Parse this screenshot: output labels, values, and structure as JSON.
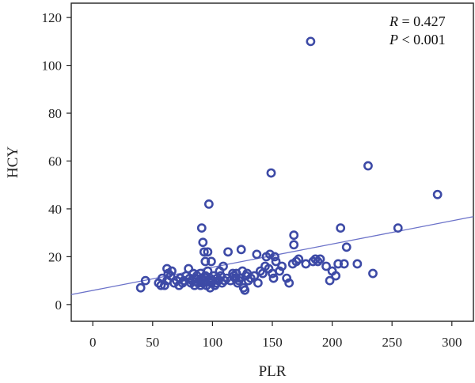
{
  "chart_data": {
    "type": "scatter",
    "xlabel": "PLR",
    "ylabel": "HCY",
    "xlim": [
      -18,
      318
    ],
    "ylim": [
      -7,
      126
    ],
    "x_ticks": [
      0,
      50,
      100,
      150,
      200,
      250,
      300
    ],
    "y_ticks": [
      0,
      20,
      40,
      60,
      80,
      100,
      120
    ],
    "x_tick_labels": [
      "0",
      "50",
      "100",
      "150",
      "200",
      "250",
      "300"
    ],
    "y_tick_labels": [
      "0",
      "20",
      "40",
      "60",
      "80",
      "100",
      "120"
    ],
    "grid": false,
    "marker_color": "#3d4aa6",
    "line_color": "#6b72c9",
    "regression_line": {
      "intercept": 5.9,
      "slope": 0.097
    },
    "annotation": {
      "r_symbol": "R",
      "r_text": " = 0.427",
      "p_symbol": "P",
      "p_text": " < 0.001"
    },
    "points": [
      [
        40,
        7
      ],
      [
        44,
        10
      ],
      [
        55,
        9
      ],
      [
        57,
        8
      ],
      [
        58,
        11
      ],
      [
        60,
        8
      ],
      [
        62,
        10
      ],
      [
        62,
        15
      ],
      [
        63,
        13
      ],
      [
        65,
        12
      ],
      [
        66,
        14
      ],
      [
        68,
        9
      ],
      [
        70,
        10
      ],
      [
        72,
        8
      ],
      [
        73,
        11
      ],
      [
        75,
        9
      ],
      [
        76,
        10
      ],
      [
        78,
        12
      ],
      [
        80,
        15
      ],
      [
        81,
        11
      ],
      [
        82,
        9
      ],
      [
        83,
        10
      ],
      [
        84,
        13
      ],
      [
        85,
        8
      ],
      [
        86,
        11
      ],
      [
        87,
        12
      ],
      [
        88,
        9
      ],
      [
        89,
        10
      ],
      [
        90,
        8
      ],
      [
        90,
        13
      ],
      [
        91,
        11
      ],
      [
        91,
        32
      ],
      [
        92,
        9
      ],
      [
        92,
        26
      ],
      [
        93,
        10
      ],
      [
        93,
        22
      ],
      [
        94,
        12
      ],
      [
        94,
        18
      ],
      [
        95,
        8
      ],
      [
        96,
        14
      ],
      [
        96,
        22
      ],
      [
        97,
        42
      ],
      [
        98,
        7
      ],
      [
        98,
        11
      ],
      [
        99,
        9
      ],
      [
        99,
        18
      ],
      [
        100,
        10
      ],
      [
        101,
        12
      ],
      [
        102,
        8
      ],
      [
        103,
        9
      ],
      [
        104,
        11
      ],
      [
        105,
        10
      ],
      [
        106,
        14
      ],
      [
        107,
        12
      ],
      [
        108,
        9
      ],
      [
        109,
        16
      ],
      [
        110,
        10
      ],
      [
        112,
        11
      ],
      [
        113,
        22
      ],
      [
        115,
        10
      ],
      [
        117,
        13
      ],
      [
        118,
        12
      ],
      [
        119,
        11
      ],
      [
        120,
        13
      ],
      [
        121,
        9
      ],
      [
        122,
        10
      ],
      [
        123,
        11
      ],
      [
        124,
        23
      ],
      [
        125,
        14
      ],
      [
        126,
        7
      ],
      [
        127,
        6
      ],
      [
        128,
        12
      ],
      [
        129,
        13
      ],
      [
        130,
        10
      ],
      [
        132,
        11
      ],
      [
        135,
        12
      ],
      [
        137,
        21
      ],
      [
        138,
        9
      ],
      [
        140,
        14
      ],
      [
        142,
        13
      ],
      [
        144,
        16
      ],
      [
        145,
        20
      ],
      [
        147,
        15
      ],
      [
        148,
        21
      ],
      [
        149,
        55
      ],
      [
        150,
        13
      ],
      [
        151,
        11
      ],
      [
        152,
        20
      ],
      [
        153,
        18
      ],
      [
        156,
        14
      ],
      [
        158,
        16
      ],
      [
        162,
        11
      ],
      [
        164,
        9
      ],
      [
        167,
        17
      ],
      [
        168,
        29
      ],
      [
        168,
        25
      ],
      [
        170,
        18
      ],
      [
        172,
        19
      ],
      [
        178,
        17
      ],
      [
        182,
        110
      ],
      [
        184,
        18
      ],
      [
        186,
        19
      ],
      [
        188,
        18
      ],
      [
        190,
        19
      ],
      [
        195,
        16
      ],
      [
        198,
        10
      ],
      [
        200,
        14
      ],
      [
        203,
        12
      ],
      [
        205,
        17
      ],
      [
        207,
        32
      ],
      [
        210,
        17
      ],
      [
        212,
        24
      ],
      [
        221,
        17
      ],
      [
        230,
        58
      ],
      [
        234,
        13
      ],
      [
        255,
        32
      ],
      [
        288,
        46
      ]
    ]
  }
}
